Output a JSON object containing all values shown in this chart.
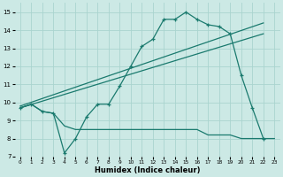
{
  "bg_color": "#cce9e5",
  "line_color": "#1a7a6e",
  "grid_color": "#aad4cf",
  "xlabel": "Humidex (Indice chaleur)",
  "ylim": [
    7,
    15.5
  ],
  "xlim": [
    -0.5,
    23.5
  ],
  "yticks": [
    7,
    8,
    9,
    10,
    11,
    12,
    13,
    14,
    15
  ],
  "xticks": [
    0,
    1,
    2,
    3,
    4,
    5,
    6,
    7,
    8,
    9,
    10,
    11,
    12,
    13,
    14,
    15,
    16,
    17,
    18,
    19,
    20,
    21,
    22,
    23
  ],
  "line_main_x": [
    0,
    1,
    2,
    3,
    4,
    5,
    6,
    7,
    8,
    9,
    10,
    11,
    12,
    13,
    14,
    15,
    16,
    17,
    18,
    19,
    20,
    21,
    22
  ],
  "line_main_y": [
    9.7,
    9.9,
    9.5,
    9.4,
    7.2,
    8.0,
    9.2,
    9.9,
    9.9,
    10.9,
    12.0,
    13.1,
    13.5,
    14.6,
    14.6,
    15.0,
    14.6,
    14.3,
    14.2,
    13.8,
    11.5,
    9.7,
    8.0
  ],
  "line_bottom_x": [
    0,
    1,
    2,
    3,
    4,
    5,
    6,
    7,
    8,
    9,
    10,
    11,
    12,
    13,
    14,
    15,
    16,
    17,
    18,
    19,
    20,
    21,
    22,
    23
  ],
  "line_bottom_y": [
    9.7,
    9.9,
    9.5,
    9.4,
    8.7,
    8.5,
    8.5,
    8.5,
    8.5,
    8.5,
    8.5,
    8.5,
    8.5,
    8.5,
    8.5,
    8.5,
    8.5,
    8.2,
    8.2,
    8.2,
    8.0,
    8.0,
    8.0,
    8.0
  ],
  "line_trend1_x": [
    0,
    22
  ],
  "line_trend1_y": [
    9.7,
    13.8
  ],
  "line_trend2_x": [
    0,
    22
  ],
  "line_trend2_y": [
    9.8,
    14.4
  ]
}
